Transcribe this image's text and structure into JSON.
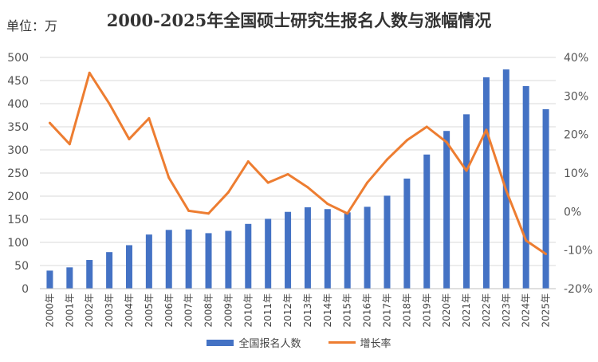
{
  "unit_label": "单位：万",
  "chart_data": {
    "type": "bar",
    "title": "2000-2025年全国硕士研究生报名人数与涨幅情况",
    "categories": [
      "2000年",
      "2001年",
      "2002年",
      "2003年",
      "2004年",
      "2005年",
      "2006年",
      "2007年",
      "2008年",
      "2009年",
      "2010年",
      "2011年",
      "2012年",
      "2013年",
      "2014年",
      "2015年",
      "2016年",
      "2017年",
      "2018年",
      "2019年",
      "2020年",
      "2021年",
      "2022年",
      "2023年",
      "2024年",
      "2025年"
    ],
    "y_left": {
      "ticks": [
        "0",
        "50",
        "100",
        "150",
        "200",
        "250",
        "300",
        "350",
        "400",
        "450",
        "500"
      ],
      "ylim": [
        0,
        500
      ]
    },
    "y_right": {
      "ticks": [
        "-20%",
        "-10%",
        "0%",
        "10%",
        "20%",
        "30%",
        "40%"
      ],
      "ylim": [
        -20,
        40
      ]
    },
    "series": [
      {
        "name": "全国报名人数",
        "type": "bar",
        "color": "#4472C4",
        "axis": "left",
        "values": [
          39,
          46,
          62,
          79,
          94,
          117,
          127,
          128,
          120,
          125,
          140,
          151,
          166,
          176,
          172,
          165,
          177,
          201,
          238,
          290,
          341,
          377,
          457,
          474,
          438,
          388
        ]
      },
      {
        "name": "增长率",
        "type": "line",
        "color": "#ED7D31",
        "axis": "right",
        "values": [
          23,
          17.5,
          36,
          28,
          18.8,
          24.2,
          8.8,
          0.2,
          -0.5,
          5,
          13,
          7.5,
          9.7,
          6.3,
          2,
          -0.5,
          7.5,
          13.5,
          18.5,
          22,
          18,
          10.6,
          21.2,
          5.5,
          -7.5,
          -11
        ]
      }
    ],
    "legend": {
      "position": "bottom",
      "items": [
        "全国报名人数",
        "增长率"
      ]
    }
  }
}
